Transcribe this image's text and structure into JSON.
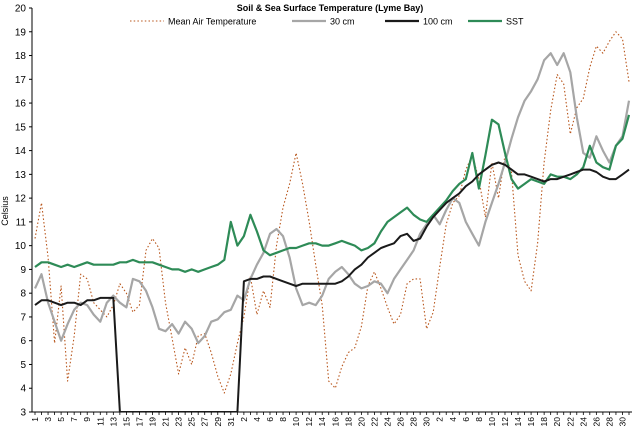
{
  "chart_data": {
    "type": "line",
    "title": "Soil & Sea Surface Temperature (Lyme Bay)",
    "ylabel": "Celsius",
    "xlabel": "",
    "ylim": [
      3,
      20
    ],
    "yticks": [
      3,
      4,
      5,
      6,
      7,
      8,
      9,
      10,
      11,
      12,
      13,
      14,
      15,
      16,
      17,
      18,
      19,
      20
    ],
    "x_day_labels": [
      "1",
      "3",
      "5",
      "7",
      "9",
      "11",
      "13",
      "15",
      "17",
      "19",
      "21",
      "23",
      "25",
      "27",
      "29",
      "31",
      "2",
      "4",
      "6",
      "8",
      "10",
      "12",
      "14",
      "16",
      "18",
      "20",
      "22",
      "24",
      "26",
      "28",
      "30",
      "2",
      "4",
      "6",
      "8",
      "10",
      "12",
      "14",
      "16",
      "18",
      "20",
      "22",
      "24",
      "26",
      "28",
      "30"
    ],
    "n_days": 92,
    "grid": false,
    "legend_position": "top",
    "series": [
      {
        "name": "Mean Air Temperature",
        "color": "#b8561c",
        "style": "dotted",
        "values": [
          10.3,
          11.8,
          9.5,
          5.9,
          8.3,
          4.3,
          6.2,
          8.8,
          8.6,
          7.6,
          7.3,
          7.0,
          7.5,
          8.4,
          8.0,
          7.2,
          7.5,
          9.8,
          10.3,
          9.9,
          7.6,
          6.1,
          4.6,
          5.7,
          5.0,
          6.2,
          6.3,
          5.5,
          4.5,
          3.8,
          4.6,
          5.9,
          7.0,
          8.7,
          7.1,
          8.1,
          7.4,
          10.0,
          11.6,
          12.6,
          13.9,
          12.6,
          11.0,
          9.2,
          7.5,
          4.3,
          4.0,
          4.9,
          5.5,
          5.7,
          6.6,
          8.3,
          8.9,
          8.2,
          7.4,
          6.7,
          7.1,
          8.4,
          8.6,
          8.6,
          6.5,
          7.2,
          9.1,
          10.9,
          11.8,
          12.1,
          13.2,
          13.8,
          12.8,
          11.2,
          13.5,
          12.0,
          13.8,
          13.1,
          9.6,
          8.5,
          8.1,
          10.1,
          13.5,
          15.7,
          17.2,
          16.8,
          14.7,
          15.8,
          16.2,
          17.5,
          18.4,
          18.1,
          18.6,
          19.0,
          18.7,
          16.9
        ]
      },
      {
        "name": "30 cm",
        "color": "#a6a6a6",
        "style": "solid",
        "values": [
          8.2,
          8.8,
          7.6,
          6.8,
          6.0,
          6.7,
          7.3,
          7.6,
          7.5,
          7.1,
          6.8,
          7.6,
          7.9,
          7.6,
          7.4,
          8.6,
          8.5,
          8.1,
          7.4,
          6.5,
          6.4,
          6.7,
          6.3,
          6.8,
          6.5,
          5.9,
          6.2,
          6.8,
          6.9,
          7.2,
          7.3,
          7.9,
          7.7,
          8.6,
          9.2,
          9.7,
          10.5,
          10.7,
          10.4,
          9.5,
          8.2,
          7.5,
          7.6,
          7.5,
          7.9,
          8.6,
          8.9,
          9.1,
          8.8,
          8.4,
          8.2,
          8.3,
          8.5,
          8.4,
          8.0,
          8.6,
          9.0,
          9.4,
          9.8,
          10.5,
          10.9,
          11.3,
          10.9,
          11.5,
          12.0,
          11.8,
          11.0,
          10.5,
          10.0,
          11.0,
          11.8,
          12.6,
          13.5,
          14.5,
          15.4,
          16.1,
          16.5,
          17.0,
          17.8,
          18.1,
          17.6,
          18.1,
          17.3,
          15.4,
          13.9,
          13.7,
          14.6,
          14.0,
          13.5,
          14.2,
          14.6,
          16.1
        ]
      },
      {
        "name": "100 cm",
        "color": "#1a1a1a",
        "style": "solid",
        "values": [
          7.5,
          7.7,
          7.7,
          7.6,
          7.5,
          7.6,
          7.6,
          7.5,
          7.7,
          7.7,
          7.8,
          7.8,
          7.8,
          3.0,
          3.0,
          3.0,
          3.0,
          3.0,
          3.0,
          3.0,
          3.0,
          3.0,
          3.0,
          3.0,
          3.0,
          3.0,
          3.0,
          3.0,
          3.0,
          3.0,
          3.0,
          3.0,
          8.5,
          8.6,
          8.6,
          8.7,
          8.7,
          8.6,
          8.5,
          8.4,
          8.3,
          8.4,
          8.4,
          8.4,
          8.4,
          8.4,
          8.4,
          8.5,
          8.7,
          9.0,
          9.2,
          9.5,
          9.7,
          9.9,
          10.0,
          10.1,
          10.4,
          10.5,
          10.2,
          10.3,
          10.8,
          11.2,
          11.5,
          11.8,
          12.0,
          12.2,
          12.5,
          12.7,
          13.0,
          13.2,
          13.4,
          13.5,
          13.4,
          13.2,
          13.0,
          13.0,
          12.9,
          12.8,
          12.7,
          12.8,
          12.8,
          12.9,
          13.0,
          13.1,
          13.2,
          13.2,
          13.1,
          12.9,
          12.8,
          12.8,
          13.0,
          13.2
        ]
      },
      {
        "name": "SST",
        "color": "#2e8b57",
        "style": "solid",
        "values": [
          9.1,
          9.3,
          9.3,
          9.2,
          9.1,
          9.2,
          9.1,
          9.2,
          9.3,
          9.2,
          9.2,
          9.2,
          9.2,
          9.3,
          9.3,
          9.4,
          9.3,
          9.3,
          9.3,
          9.2,
          9.1,
          9.0,
          9.0,
          8.9,
          9.0,
          8.9,
          9.0,
          9.1,
          9.2,
          9.4,
          11.0,
          10.0,
          10.4,
          11.3,
          10.6,
          9.8,
          9.6,
          9.7,
          9.8,
          9.9,
          9.9,
          10.0,
          10.1,
          10.1,
          10.0,
          10.0,
          10.1,
          10.2,
          10.1,
          10.0,
          9.8,
          9.9,
          10.1,
          10.6,
          11.0,
          11.2,
          11.4,
          11.6,
          11.3,
          11.1,
          11.0,
          11.3,
          11.6,
          11.9,
          12.3,
          12.6,
          12.8,
          13.9,
          12.4,
          13.8,
          15.3,
          15.1,
          13.9,
          12.8,
          12.4,
          12.6,
          12.8,
          12.7,
          12.6,
          13.0,
          12.9,
          12.9,
          12.8,
          13.0,
          13.3,
          14.2,
          13.5,
          13.3,
          13.2,
          14.2,
          14.5,
          15.5
        ]
      }
    ]
  }
}
